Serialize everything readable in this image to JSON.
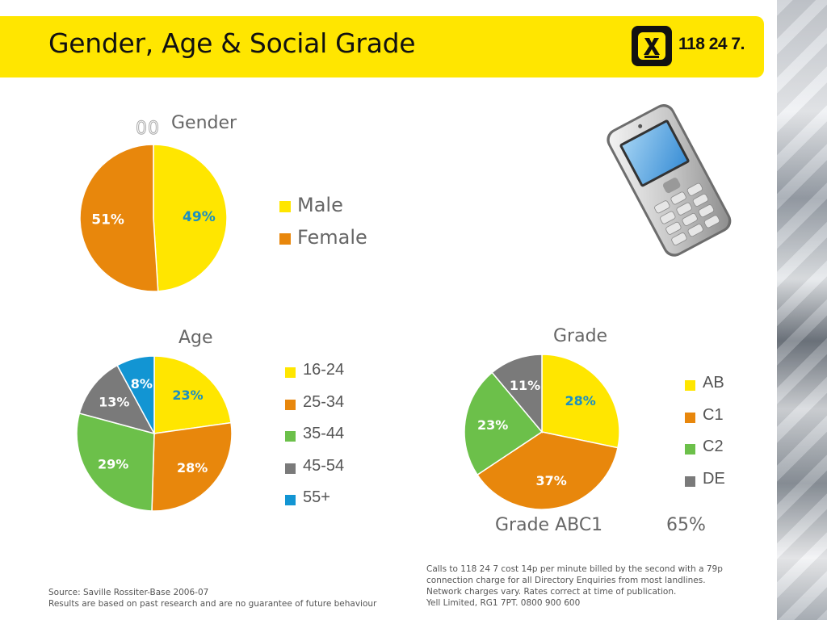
{
  "header": {
    "title": "Gender, Age & Social Grade",
    "logo_text": "118 24 7."
  },
  "colors": {
    "yellow": "#ffe600",
    "orange": "#e8870c",
    "green": "#6cc04a",
    "gray": "#7a7a7a",
    "blue": "#1295d3",
    "label_blue": "#1a8fc2"
  },
  "ghost_text": "00",
  "chart_data": [
    {
      "type": "pie",
      "title": "Gender",
      "categories": [
        "Male",
        "Female"
      ],
      "values": [
        49,
        51
      ],
      "labels": [
        "49%",
        "51%"
      ]
    },
    {
      "type": "pie",
      "title": "Age",
      "categories": [
        "16-24",
        "25-34",
        "35-44",
        "45-54",
        "55+"
      ],
      "values": [
        23,
        28,
        29,
        13,
        8
      ],
      "labels": [
        "23%",
        "28%",
        "29%",
        "13%",
        "8%"
      ]
    },
    {
      "type": "pie",
      "title": "Grade",
      "categories": [
        "AB",
        "C1",
        "C2",
        "DE"
      ],
      "values": [
        28,
        37,
        23,
        11
      ],
      "labels": [
        "28%",
        "37%",
        "23%",
        "11%"
      ]
    }
  ],
  "grade_summary": {
    "label": "Grade ABC1",
    "value": "65%"
  },
  "footnotes": {
    "source_line1": "Source: Saville Rossiter-Base 2006-07",
    "source_line2": "Results are based on past research and are no guarantee of future behaviour",
    "legal_line1": "Calls to 118 24 7 cost 14p per minute billed by the second with a 79p",
    "legal_line2": "connection charge for all Directory Enquiries from most landlines.",
    "legal_line3": "Network charges vary. Rates correct at time of publication.",
    "legal_line4": "Yell Limited, RG1 7PT. 0800 900 600"
  },
  "icons": {
    "phone": "mobile-phone-icon",
    "logo": "118-247-logo-icon"
  }
}
